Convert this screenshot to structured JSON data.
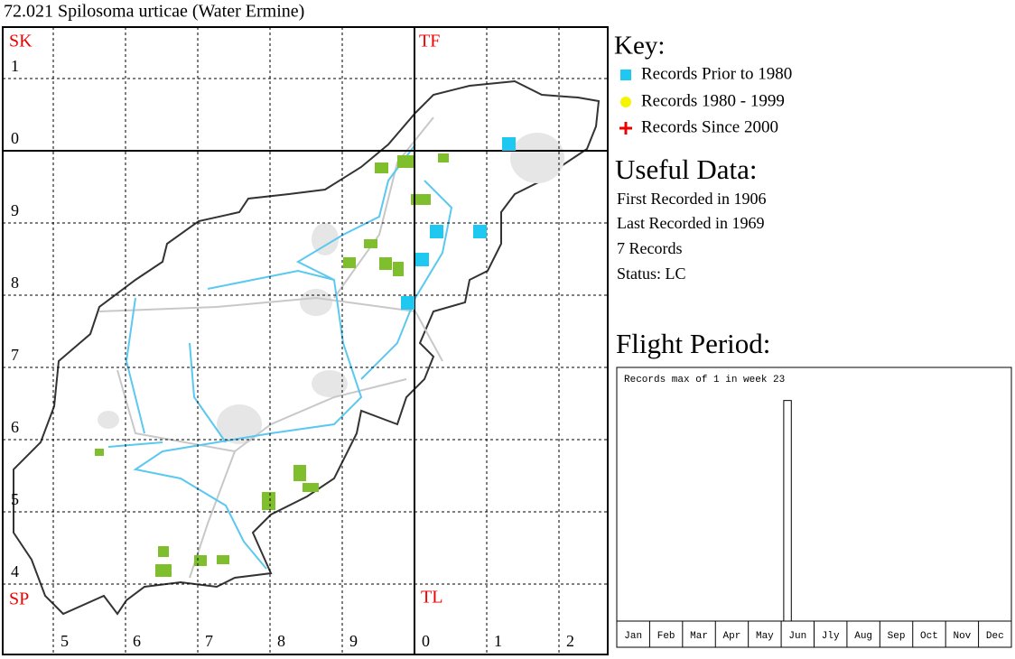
{
  "title": "72.021 Spilosoma urticae (Water Ermine)",
  "grid_labels": {
    "squares": [
      "SK",
      "TF",
      "SP",
      "TL"
    ],
    "rows": [
      "1",
      "0",
      "9",
      "8",
      "7",
      "6",
      "5",
      "4"
    ],
    "columns": [
      "5",
      "6",
      "7",
      "8",
      "9",
      "0",
      "1",
      "2"
    ]
  },
  "key": {
    "title": "Key:",
    "items": [
      "Records Prior to 1980",
      "Records 1980 - 1999",
      "Records Since 2000"
    ]
  },
  "useful_data": {
    "title": "Useful Data:",
    "lines": [
      "First Recorded in 1906",
      "Last Recorded in 1969",
      "7 Records",
      "Status: LC"
    ]
  },
  "chart_data": {
    "type": "bar",
    "title": "Flight Period:",
    "annotation": "Records max of 1 in week 23",
    "categories": [
      "Jan",
      "Feb",
      "Mar",
      "Apr",
      "May",
      "Jun",
      "Jly",
      "Aug",
      "Sep",
      "Oct",
      "Nov",
      "Dec"
    ],
    "x": [
      23
    ],
    "values": [
      1
    ],
    "xlim": [
      0,
      52
    ],
    "ylim": [
      0,
      1.15
    ],
    "color": "#ffffff"
  }
}
